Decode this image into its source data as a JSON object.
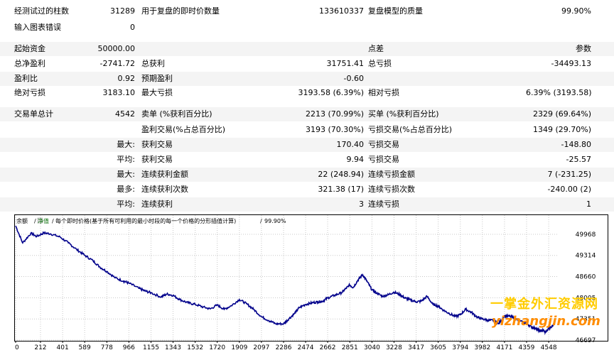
{
  "report": {
    "bars_tested": {
      "label": "经测试过的柱数",
      "value": "31289"
    },
    "ticks_modelled": {
      "label": "用于复盘的即时价数量",
      "value": "133610337"
    },
    "modelling_quality": {
      "label": "复盘模型的质量",
      "value": "99.90%"
    },
    "mismatched_errors": {
      "label": "输入图表错误",
      "value": "0"
    },
    "initial_deposit": {
      "label": "起始资金",
      "value": "50000.00"
    },
    "spread": {
      "label": "点差",
      "value": "参数"
    },
    "total_net_profit": {
      "label": "总净盈利",
      "value": "-2741.72"
    },
    "gross_profit": {
      "label": "总获利",
      "value": "31751.41"
    },
    "gross_loss": {
      "label": "总亏损",
      "value": "-34493.13"
    },
    "profit_factor": {
      "label": "盈利比",
      "value": "0.92"
    },
    "expected_payoff": {
      "label": "预期盈利",
      "value": "-0.60"
    },
    "absolute_drawdown": {
      "label": "绝对亏损",
      "value": "3183.10"
    },
    "maximal_drawdown": {
      "label": "最大亏损",
      "value": "3193.58 (6.39%)"
    },
    "relative_drawdown": {
      "label": "相对亏损",
      "value": "6.39% (3193.58)"
    },
    "total_trades": {
      "label": "交易单总计",
      "value": "4542"
    },
    "short_positions": {
      "label": "卖单 (%获利百分比)",
      "value": "2213 (70.99%)"
    },
    "long_positions": {
      "label": "买单 (%获利百分比)",
      "value": "2329 (69.64%)"
    },
    "profit_trades": {
      "label": "盈利交易(%占总百分比)",
      "value": "3193 (70.30%)"
    },
    "loss_trades": {
      "label": "亏损交易(%占总百分比)",
      "value": "1349 (29.70%)"
    },
    "largest_prefix": "最大:",
    "largest_profit_trade": {
      "label": "获利交易",
      "value": "170.40"
    },
    "largest_loss_trade": {
      "label": "亏损交易",
      "value": "-148.80"
    },
    "average_prefix": "平均:",
    "average_profit_trade": {
      "label": "获利交易",
      "value": "9.94"
    },
    "average_loss_trade": {
      "label": "亏损交易",
      "value": "-25.57"
    },
    "maximum_prefix": "最大:",
    "max_consecutive_wins": {
      "label": "连续获利金额",
      "value": "22 (248.94)"
    },
    "max_consecutive_losses": {
      "label": "连续亏损金额",
      "value": "7 (-231.25)"
    },
    "maximal_prefix": "最多:",
    "maximal_consecutive_profit": {
      "label": "连续获利次数",
      "value": "321.38 (17)"
    },
    "maximal_consecutive_loss": {
      "label": "连续亏损次数",
      "value": "-240.00 (2)"
    },
    "avg_prefix": "平均:",
    "avg_consecutive_wins": {
      "label": "连续获利",
      "value": "3"
    },
    "avg_consecutive_losses": {
      "label": "连续亏损",
      "value": "1"
    }
  },
  "chart_header": {
    "balance": "余额",
    "deal": "净值",
    "sep1": "/",
    "description": "每个即时价格(基于所有可利用的最小时段的每一个价格的分形插值计算)",
    "sep2": "/",
    "quality": "99.90%"
  },
  "watermark": {
    "line1": "一掌金外汇资源网",
    "line2": "yizhangjin.com"
  },
  "colors": {
    "line": "#00008b",
    "grid": "#c8c8c8",
    "alt_row": "#f4f4f4",
    "watermark_line1": "#ffcc00",
    "watermark_line2": "#ff8c00"
  },
  "chart_data": {
    "type": "line",
    "x_ticks": [
      0,
      212,
      401,
      589,
      778,
      966,
      1155,
      1343,
      1532,
      1720,
      1909,
      2097,
      2286,
      2474,
      2662,
      2851,
      3040,
      3228,
      3417,
      3605,
      3794,
      3982,
      4171,
      4359,
      4548
    ],
    "y_ticks": [
      49968,
      49314,
      48660,
      48005,
      47351,
      46697
    ],
    "ylim": [
      46697,
      50230
    ],
    "xlim": [
      0,
      4620
    ],
    "grid": true,
    "series": [
      {
        "x": [
          0,
          60,
          130,
          180,
          240,
          300,
          380,
          450,
          520,
          589,
          660,
          720,
          778,
          850,
          920,
          966,
          1050,
          1100,
          1155,
          1240,
          1290,
          1343,
          1400,
          1470,
          1532,
          1600,
          1660,
          1720,
          1780,
          1840,
          1909,
          1970,
          2030,
          2097,
          2160,
          2220,
          2286,
          2330,
          2380,
          2420,
          2474,
          2530,
          2580,
          2620,
          2662,
          2720,
          2780,
          2820,
          2851,
          2880,
          2920,
          2960,
          3000,
          3040,
          3080,
          3130,
          3180,
          3228,
          3280,
          3320,
          3360,
          3417,
          3460,
          3510,
          3560,
          3605,
          3650,
          3700,
          3750,
          3794,
          3840,
          3890,
          3940,
          3982,
          4030,
          4080,
          4120,
          4171,
          4220,
          4260,
          4300,
          4359,
          4400,
          4440,
          4470,
          4500,
          4520,
          4548,
          4570,
          4600
        ],
        "y": [
          50230,
          49700,
          50000,
          49900,
          50010,
          49980,
          49880,
          49700,
          49500,
          49320,
          49150,
          48950,
          48820,
          48620,
          48520,
          48460,
          48300,
          48220,
          48160,
          48030,
          48120,
          48080,
          47950,
          47850,
          47800,
          47720,
          47660,
          47780,
          47650,
          47760,
          47950,
          47820,
          47650,
          47420,
          47300,
          47200,
          47200,
          47350,
          47520,
          47700,
          47800,
          47850,
          47880,
          47900,
          48000,
          48080,
          48160,
          48300,
          48400,
          48320,
          48550,
          48720,
          48500,
          48250,
          48150,
          48050,
          48100,
          48180,
          48100,
          48000,
          47950,
          47880,
          47900,
          48050,
          47800,
          47750,
          47620,
          47520,
          47430,
          47480,
          47650,
          47550,
          47400,
          47350,
          47310,
          47300,
          47200,
          47450,
          47430,
          47380,
          47280,
          47220,
          47100,
          47060,
          46980,
          47000,
          46930,
          47050,
          47100,
          47250
        ]
      }
    ]
  }
}
